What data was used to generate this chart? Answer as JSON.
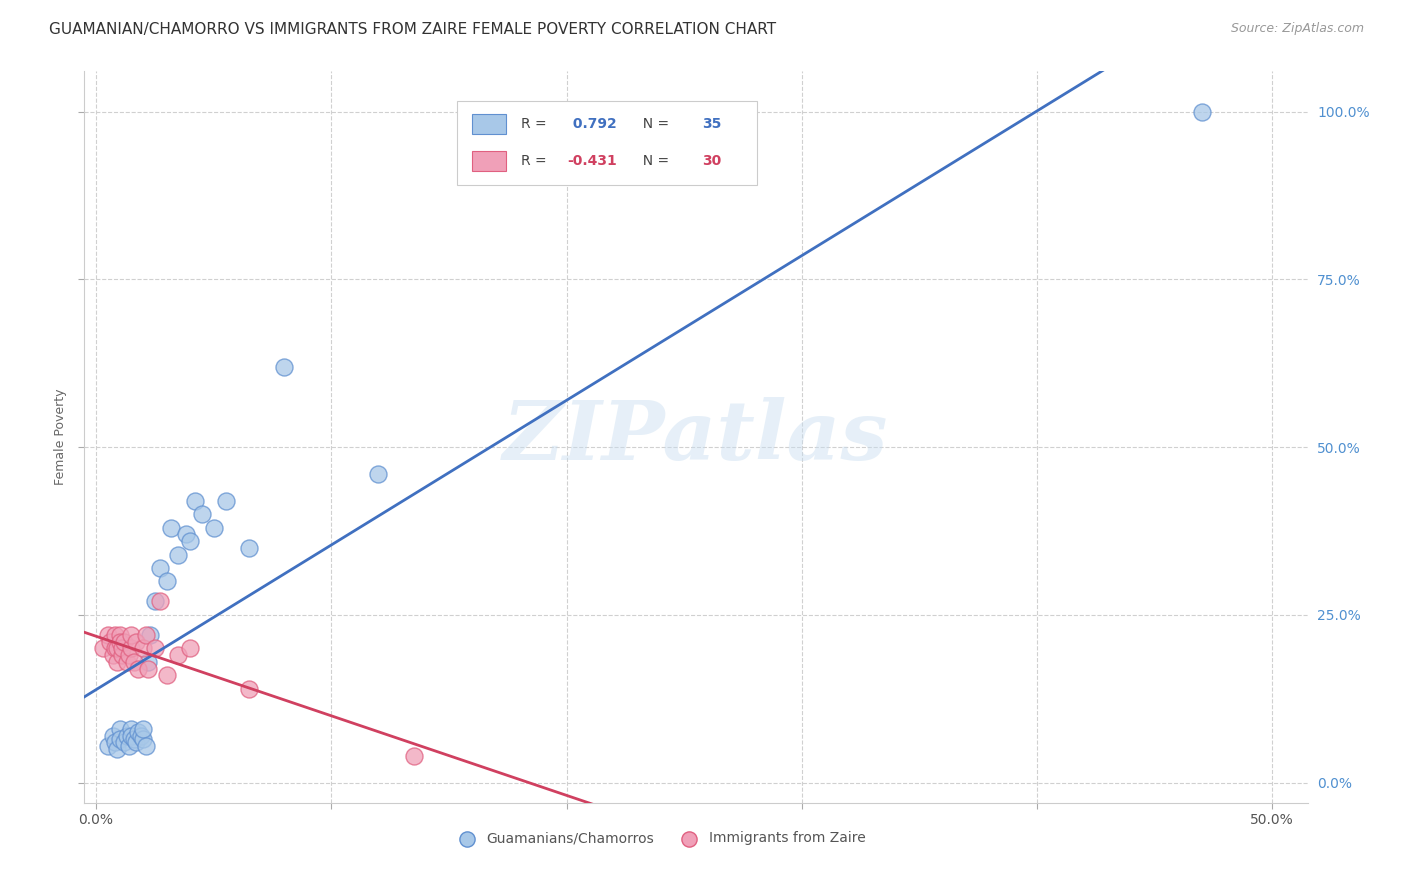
{
  "title": "GUAMANIAN/CHAMORRO VS IMMIGRANTS FROM ZAIRE FEMALE POVERTY CORRELATION CHART",
  "source": "Source: ZipAtlas.com",
  "xlabel_ticks": [
    "0.0%",
    "",
    "",
    "",
    "",
    "50.0%"
  ],
  "xlabel_vals": [
    0.0,
    0.1,
    0.2,
    0.3,
    0.4,
    0.5
  ],
  "ylabel": "Female Poverty",
  "ylabel_ticks_right": [
    "100.0%",
    "75.0%",
    "50.0%",
    "25.0%",
    "0.0%"
  ],
  "ylabel_vals": [
    0.0,
    0.25,
    0.5,
    0.75,
    1.0
  ],
  "xlim": [
    -0.005,
    0.515
  ],
  "ylim": [
    -0.03,
    1.06
  ],
  "blue_R": 0.792,
  "blue_N": 35,
  "pink_R": -0.431,
  "pink_N": 30,
  "blue_color": "#A8C8E8",
  "pink_color": "#F0A0B8",
  "blue_edge_color": "#6090D0",
  "pink_edge_color": "#E06080",
  "blue_line_color": "#4070C0",
  "pink_line_color": "#D04060",
  "watermark": "ZIPatlas",
  "legend_label_blue": "Guamanians/Chamorros",
  "legend_label_pink": "Immigrants from Zaire",
  "blue_points_x": [
    0.005,
    0.007,
    0.008,
    0.009,
    0.01,
    0.01,
    0.012,
    0.013,
    0.014,
    0.015,
    0.015,
    0.016,
    0.017,
    0.018,
    0.019,
    0.02,
    0.02,
    0.021,
    0.022,
    0.023,
    0.025,
    0.027,
    0.03,
    0.032,
    0.035,
    0.038,
    0.04,
    0.042,
    0.045,
    0.05,
    0.055,
    0.065,
    0.08,
    0.12,
    0.47
  ],
  "blue_points_y": [
    0.055,
    0.07,
    0.06,
    0.05,
    0.08,
    0.065,
    0.06,
    0.07,
    0.055,
    0.08,
    0.07,
    0.065,
    0.06,
    0.075,
    0.07,
    0.065,
    0.08,
    0.055,
    0.18,
    0.22,
    0.27,
    0.32,
    0.3,
    0.38,
    0.34,
    0.37,
    0.36,
    0.42,
    0.4,
    0.38,
    0.42,
    0.35,
    0.62,
    0.46,
    1.0
  ],
  "pink_points_x": [
    0.003,
    0.005,
    0.006,
    0.007,
    0.008,
    0.008,
    0.009,
    0.009,
    0.01,
    0.01,
    0.011,
    0.011,
    0.012,
    0.013,
    0.014,
    0.015,
    0.015,
    0.016,
    0.017,
    0.018,
    0.02,
    0.021,
    0.022,
    0.025,
    0.027,
    0.03,
    0.035,
    0.04,
    0.065,
    0.135
  ],
  "pink_points_y": [
    0.2,
    0.22,
    0.21,
    0.19,
    0.2,
    0.22,
    0.18,
    0.2,
    0.22,
    0.21,
    0.19,
    0.2,
    0.21,
    0.18,
    0.19,
    0.2,
    0.22,
    0.18,
    0.21,
    0.17,
    0.2,
    0.22,
    0.17,
    0.2,
    0.27,
    0.16,
    0.19,
    0.2,
    0.14,
    0.04
  ],
  "grid_color": "#D0D0D0",
  "background_color": "#FFFFFF",
  "title_fontsize": 11,
  "right_tick_color": "#5090D0"
}
